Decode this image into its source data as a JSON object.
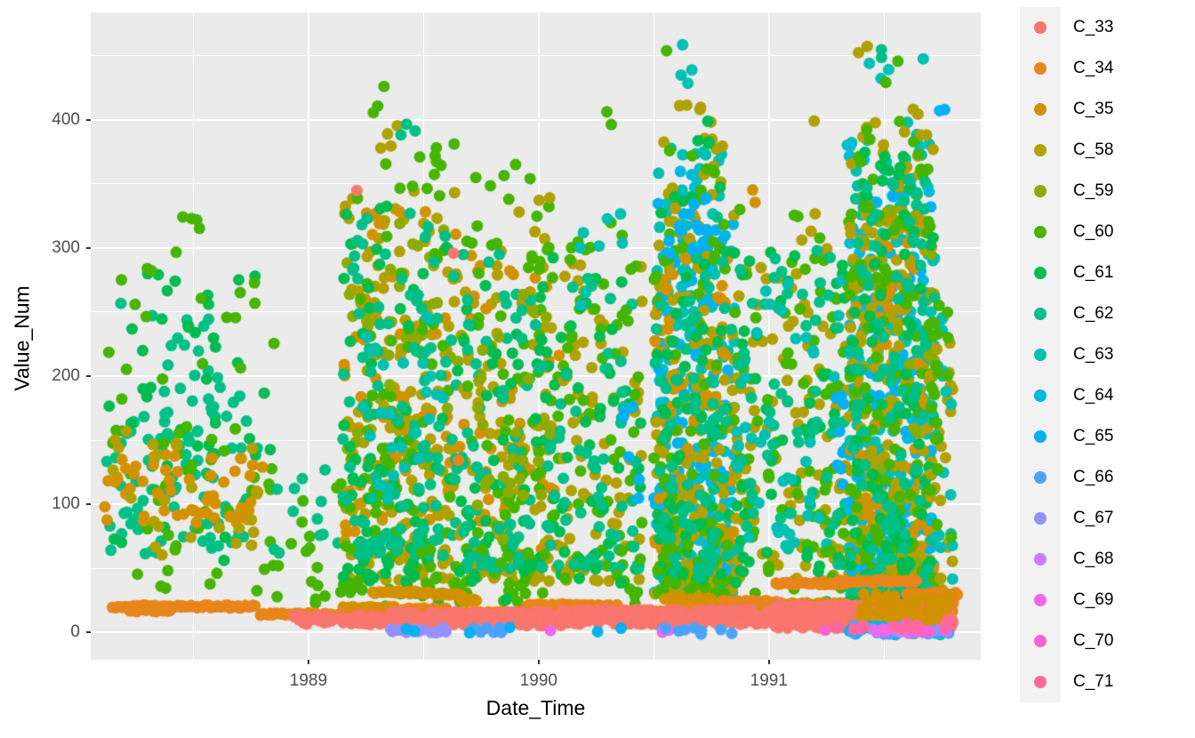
{
  "chart_data": {
    "type": "scatter",
    "title": "",
    "xlabel": "Date_Time",
    "ylabel": "Value_Num",
    "x_tick_labels": [
      "1989",
      "1990",
      "1991"
    ],
    "x_tick_values": [
      1989,
      1990,
      1991
    ],
    "x_minor_ticks": [
      1988.5,
      1989.5,
      1990.5,
      1991.5
    ],
    "y_tick_labels": [
      "0",
      "100",
      "200",
      "300",
      "400"
    ],
    "y_tick_values": [
      0,
      100,
      200,
      300,
      400
    ],
    "y_minor_ticks": [
      50,
      150,
      250,
      350,
      450
    ],
    "x_range": [
      1988.054,
      1991.92
    ],
    "y_range": [
      -21.5,
      484
    ],
    "grid": "on",
    "legend_position": "right",
    "point_diameter": 13,
    "colors": {
      "panel_bg": "#EBEBEB",
      "grid": "#FFFFFF",
      "tick_label": "#4D4D4D",
      "axis_title": "#000000",
      "legend_key_bg": "#F2F2F2",
      "figure_bg": "#FFFFFF"
    },
    "series": [
      {
        "label": "C_33",
        "color": "#F8766D"
      },
      {
        "label": "C_34",
        "color": "#E7861B"
      },
      {
        "label": "C_35",
        "color": "#D29200"
      },
      {
        "label": "C_58",
        "color": "#B1A100"
      },
      {
        "label": "C_59",
        "color": "#8CAB00"
      },
      {
        "label": "C_60",
        "color": "#45B500"
      },
      {
        "label": "C_61",
        "color": "#00BC51"
      },
      {
        "label": "C_62",
        "color": "#00C087"
      },
      {
        "label": "C_63",
        "color": "#00C0B2"
      },
      {
        "label": "C_64",
        "color": "#00BBDA"
      },
      {
        "label": "C_65",
        "color": "#00B2F3"
      },
      {
        "label": "C_66",
        "color": "#4BA3FF"
      },
      {
        "label": "C_67",
        "color": "#9590FF"
      },
      {
        "label": "C_68",
        "color": "#CC7AFF"
      },
      {
        "label": "C_69",
        "color": "#EF67EB"
      },
      {
        "label": "C_70",
        "color": "#FC61CF"
      },
      {
        "label": "C_71",
        "color": "#FF689E"
      }
    ],
    "clusters_note": "each cluster = [series_index, x_start_yr, x_end_yr, value_min, value_max, n_points, dist u=uniform t=bottom-weighted]",
    "clusters": [
      [
        7,
        1988.1,
        1988.8,
        60,
        190,
        80,
        "u"
      ],
      [
        7,
        1988.3,
        1988.62,
        150,
        262,
        25,
        "u"
      ],
      [
        6,
        1988.12,
        1988.85,
        45,
        280,
        45,
        "u"
      ],
      [
        5,
        1988.12,
        1988.88,
        30,
        300,
        55,
        "u"
      ],
      [
        5,
        1988.45,
        1988.55,
        280,
        325,
        4,
        "u"
      ],
      [
        2,
        1988.1,
        1988.8,
        85,
        140,
        60,
        "u"
      ],
      [
        3,
        1988.15,
        1988.8,
        60,
        160,
        25,
        "u"
      ],
      [
        7,
        1988.16,
        1988.19,
        255,
        261,
        1,
        "u"
      ],
      [
        5,
        1988.8,
        1989.15,
        20,
        120,
        18,
        "u"
      ],
      [
        7,
        1988.85,
        1989.15,
        60,
        140,
        12,
        "u"
      ],
      [
        3,
        1989.15,
        1989.65,
        40,
        345,
        160,
        "t"
      ],
      [
        2,
        1989.15,
        1989.65,
        60,
        330,
        60,
        "u"
      ],
      [
        4,
        1989.15,
        1989.65,
        80,
        320,
        40,
        "u"
      ],
      [
        5,
        1989.15,
        1989.65,
        30,
        385,
        90,
        "t"
      ],
      [
        6,
        1989.15,
        1989.65,
        40,
        340,
        70,
        "t"
      ],
      [
        7,
        1989.15,
        1989.65,
        60,
        330,
        110,
        "t"
      ],
      [
        8,
        1989.2,
        1989.6,
        100,
        250,
        25,
        "u"
      ],
      [
        5,
        1989.27,
        1989.34,
        395,
        432,
        3,
        "u"
      ],
      [
        3,
        1989.3,
        1989.46,
        378,
        400,
        4,
        "u"
      ],
      [
        7,
        1989.4,
        1989.5,
        388,
        400,
        3,
        "u"
      ],
      [
        3,
        1989.65,
        1990.1,
        40,
        330,
        110,
        "t"
      ],
      [
        2,
        1989.65,
        1990.1,
        60,
        300,
        40,
        "u"
      ],
      [
        5,
        1989.65,
        1990.1,
        30,
        370,
        80,
        "t"
      ],
      [
        6,
        1989.65,
        1990.1,
        40,
        300,
        55,
        "u"
      ],
      [
        7,
        1989.65,
        1990.1,
        50,
        300,
        80,
        "t"
      ],
      [
        4,
        1989.7,
        1990.05,
        70,
        280,
        25,
        "u"
      ],
      [
        3,
        1989.95,
        1990.05,
        330,
        345,
        2,
        "u"
      ],
      [
        1,
        1989.64,
        1989.68,
        132,
        140,
        1,
        "u"
      ],
      [
        3,
        1990.1,
        1990.45,
        40,
        300,
        70,
        "t"
      ],
      [
        5,
        1990.1,
        1990.45,
        30,
        320,
        55,
        "u"
      ],
      [
        6,
        1990.1,
        1990.45,
        40,
        280,
        35,
        "u"
      ],
      [
        7,
        1990.1,
        1990.45,
        50,
        280,
        45,
        "t"
      ],
      [
        10,
        1990.35,
        1990.45,
        90,
        190,
        6,
        "u"
      ],
      [
        8,
        1990.15,
        1990.4,
        250,
        330,
        8,
        "u"
      ],
      [
        5,
        1990.27,
        1990.33,
        393,
        407,
        2,
        "u"
      ],
      [
        8,
        1990.5,
        1990.85,
        30,
        380,
        150,
        "t"
      ],
      [
        9,
        1990.5,
        1990.85,
        40,
        360,
        90,
        "t"
      ],
      [
        10,
        1990.5,
        1990.85,
        30,
        345,
        90,
        "t"
      ],
      [
        3,
        1990.5,
        1990.85,
        30,
        390,
        180,
        "t"
      ],
      [
        2,
        1990.5,
        1990.85,
        50,
        300,
        50,
        "u"
      ],
      [
        5,
        1990.5,
        1990.85,
        30,
        380,
        80,
        "t"
      ],
      [
        6,
        1990.5,
        1990.85,
        40,
        350,
        60,
        "t"
      ],
      [
        7,
        1990.5,
        1990.85,
        40,
        340,
        70,
        "t"
      ],
      [
        10,
        1990.55,
        1990.75,
        295,
        340,
        12,
        "u"
      ],
      [
        8,
        1990.6,
        1990.66,
        455,
        465,
        1,
        "u"
      ],
      [
        5,
        1990.52,
        1990.57,
        446,
        455,
        1,
        "u"
      ],
      [
        8,
        1990.6,
        1990.72,
        418,
        440,
        3,
        "u"
      ],
      [
        3,
        1990.55,
        1990.75,
        388,
        415,
        5,
        "u"
      ],
      [
        6,
        1990.6,
        1990.75,
        378,
        400,
        4,
        "u"
      ],
      [
        11,
        1990.5,
        1990.85,
        0,
        20,
        10,
        "u"
      ],
      [
        3,
        1990.85,
        1991.35,
        40,
        330,
        110,
        "t"
      ],
      [
        5,
        1990.85,
        1991.35,
        30,
        340,
        70,
        "u"
      ],
      [
        6,
        1990.85,
        1991.35,
        40,
        300,
        50,
        "u"
      ],
      [
        7,
        1990.85,
        1991.35,
        50,
        300,
        60,
        "u"
      ],
      [
        8,
        1990.85,
        1991.35,
        60,
        280,
        40,
        "u"
      ],
      [
        10,
        1991.25,
        1991.35,
        100,
        200,
        8,
        "u"
      ],
      [
        3,
        1991.14,
        1991.2,
        393,
        406,
        1,
        "u"
      ],
      [
        2,
        1990.9,
        1991.0,
        328,
        346,
        2,
        "u"
      ],
      [
        8,
        1991.28,
        1991.35,
        368,
        385,
        2,
        "u"
      ],
      [
        8,
        1991.35,
        1991.72,
        20,
        400,
        200,
        "t"
      ],
      [
        9,
        1991.35,
        1991.72,
        30,
        380,
        120,
        "t"
      ],
      [
        10,
        1991.35,
        1991.72,
        20,
        360,
        110,
        "t"
      ],
      [
        3,
        1991.35,
        1991.72,
        20,
        400,
        220,
        "t"
      ],
      [
        2,
        1991.35,
        1991.72,
        30,
        330,
        60,
        "u"
      ],
      [
        4,
        1991.35,
        1991.72,
        50,
        330,
        40,
        "u"
      ],
      [
        5,
        1991.35,
        1991.72,
        10,
        400,
        140,
        "t"
      ],
      [
        6,
        1991.35,
        1991.72,
        20,
        380,
        100,
        "t"
      ],
      [
        7,
        1991.35,
        1991.72,
        30,
        360,
        100,
        "t"
      ],
      [
        3,
        1991.7,
        1991.8,
        30,
        250,
        25,
        "u"
      ],
      [
        8,
        1991.7,
        1991.8,
        40,
        260,
        20,
        "u"
      ],
      [
        5,
        1991.7,
        1991.8,
        30,
        260,
        18,
        "u"
      ],
      [
        3,
        1991.38,
        1991.45,
        452,
        468,
        2,
        "u"
      ],
      [
        7,
        1991.42,
        1991.5,
        443,
        458,
        2,
        "u"
      ],
      [
        8,
        1991.4,
        1991.55,
        425,
        445,
        3,
        "u"
      ],
      [
        5,
        1991.5,
        1991.6,
        428,
        452,
        2,
        "u"
      ],
      [
        8,
        1991.62,
        1991.68,
        446,
        455,
        1,
        "u"
      ],
      [
        10,
        1991.68,
        1991.78,
        398,
        412,
        2,
        "u"
      ],
      [
        3,
        1991.55,
        1991.75,
        388,
        410,
        4,
        "u"
      ],
      [
        5,
        1988.9,
        1991.3,
        15,
        70,
        45,
        "u"
      ],
      [
        6,
        1989.2,
        1991.3,
        20,
        60,
        15,
        "u"
      ]
    ],
    "clusters_front": [
      [
        0,
        1988.93,
        1989.35,
        6,
        14,
        60,
        "u"
      ],
      [
        0,
        1989.35,
        1990.1,
        5,
        16,
        220,
        "u"
      ],
      [
        0,
        1990.1,
        1991.0,
        6,
        18,
        260,
        "u"
      ],
      [
        0,
        1991.0,
        1991.8,
        3,
        22,
        420,
        "u"
      ],
      [
        2,
        1991.4,
        1991.8,
        8,
        30,
        70,
        "u"
      ],
      [
        12,
        1989.33,
        1989.62,
        -1,
        4,
        14,
        "u"
      ],
      [
        11,
        1989.7,
        1989.85,
        -1,
        4,
        10,
        "u"
      ],
      [
        10,
        1989.4,
        1990.4,
        -1,
        4,
        6,
        "u"
      ],
      [
        14,
        1990.53,
        1990.58,
        0,
        3,
        2,
        "u"
      ],
      [
        14,
        1990.03,
        1990.07,
        0,
        2,
        1,
        "u"
      ],
      [
        11,
        1990.5,
        1990.85,
        -2,
        5,
        8,
        "u"
      ],
      [
        9,
        1991.35,
        1991.8,
        -2,
        5,
        12,
        "u"
      ],
      [
        10,
        1991.35,
        1991.8,
        -2,
        5,
        15,
        "u"
      ],
      [
        11,
        1991.35,
        1991.8,
        -2,
        5,
        18,
        "u"
      ],
      [
        12,
        1991.45,
        1991.8,
        -1,
        3,
        12,
        "u"
      ],
      [
        13,
        1991.5,
        1991.65,
        -1,
        3,
        8,
        "u"
      ],
      [
        14,
        1991.4,
        1991.75,
        0,
        3,
        5,
        "u"
      ],
      [
        15,
        1991.2,
        1991.8,
        0,
        3,
        6,
        "u"
      ],
      [
        16,
        1991.3,
        1991.8,
        2,
        10,
        10,
        "u"
      ]
    ],
    "segments_note": "horizontal dotted runs = [series_index, x_start_yr, x_end_yr, value]",
    "segments": [
      [
        2,
        1989.15,
        1989.37,
        19
      ],
      [
        2,
        1989.28,
        1989.52,
        31
      ],
      [
        2,
        1989.55,
        1989.66,
        30
      ],
      [
        2,
        1989.66,
        1989.73,
        25
      ],
      [
        2,
        1990.0,
        1990.3,
        20
      ],
      [
        2,
        1990.55,
        1990.75,
        26
      ],
      [
        2,
        1990.78,
        1991.05,
        21
      ],
      [
        2,
        1991.05,
        1991.33,
        22
      ],
      [
        2,
        1991.55,
        1991.8,
        16
      ],
      [
        1,
        1988.15,
        1988.77,
        20
      ],
      [
        1,
        1988.22,
        1988.4,
        17
      ],
      [
        1,
        1988.79,
        1989.38,
        14
      ],
      [
        1,
        1989.38,
        1989.6,
        18
      ],
      [
        1,
        1989.5,
        1989.98,
        15
      ],
      [
        1,
        1989.95,
        1990.34,
        21
      ],
      [
        1,
        1990.32,
        1990.56,
        16
      ],
      [
        1,
        1990.56,
        1990.8,
        18
      ],
      [
        1,
        1990.8,
        1991.03,
        24
      ],
      [
        1,
        1991.03,
        1991.34,
        38
      ],
      [
        1,
        1991.3,
        1991.64,
        40
      ],
      [
        1,
        1991.6,
        1991.82,
        30
      ],
      [
        1,
        1991.74,
        1991.8,
        22
      ]
    ],
    "outliers": [
      [
        0,
        1989.21,
        345
      ],
      [
        0,
        1989.63,
        296
      ]
    ]
  }
}
